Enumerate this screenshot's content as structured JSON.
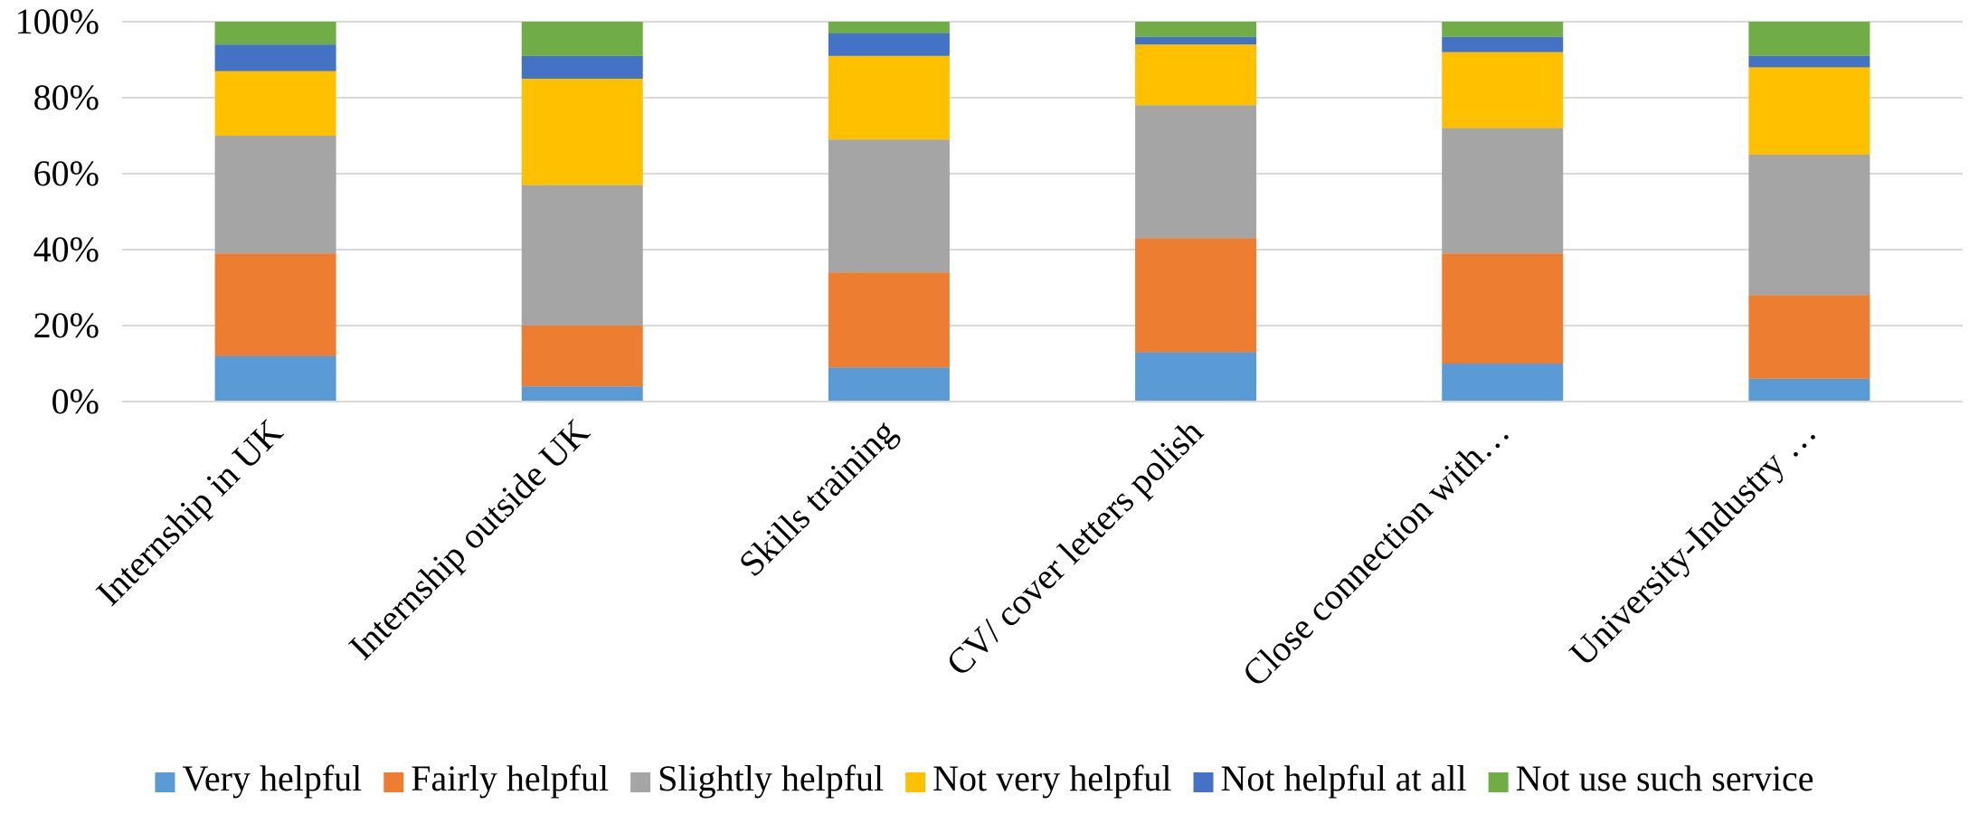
{
  "chart_data": {
    "type": "bar",
    "stacked": true,
    "percent_stacked": true,
    "categories": [
      "Internship in UK",
      "Internship outside UK",
      "Skills training",
      "CV/ cover letters polish",
      "Close connection with…",
      "University-Industry …"
    ],
    "series": [
      {
        "name": "Very helpful",
        "color": "#5B9BD5",
        "values": [
          12,
          4,
          9,
          13,
          10,
          6
        ]
      },
      {
        "name": "Fairly helpful",
        "color": "#ED7D31",
        "values": [
          27,
          16,
          25,
          30,
          29,
          22
        ]
      },
      {
        "name": "Slightly  helpful",
        "color": "#A5A5A5",
        "values": [
          31,
          37,
          35,
          35,
          33,
          37
        ]
      },
      {
        "name": "Not very helpful",
        "color": "#FFC000",
        "values": [
          17,
          28,
          22,
          16,
          20,
          23
        ]
      },
      {
        "name": "Not helpful at all",
        "color": "#4472C4",
        "values": [
          7,
          6,
          6,
          2,
          4,
          3
        ]
      },
      {
        "name": "Not use such service",
        "color": "#70AD47",
        "values": [
          6,
          9,
          3,
          4,
          4,
          9
        ]
      }
    ],
    "y_ticks": [
      "0%",
      "20%",
      "40%",
      "60%",
      "80%",
      "100%"
    ],
    "ylim": [
      0,
      100
    ],
    "grid": true,
    "legend_position": "bottom"
  }
}
